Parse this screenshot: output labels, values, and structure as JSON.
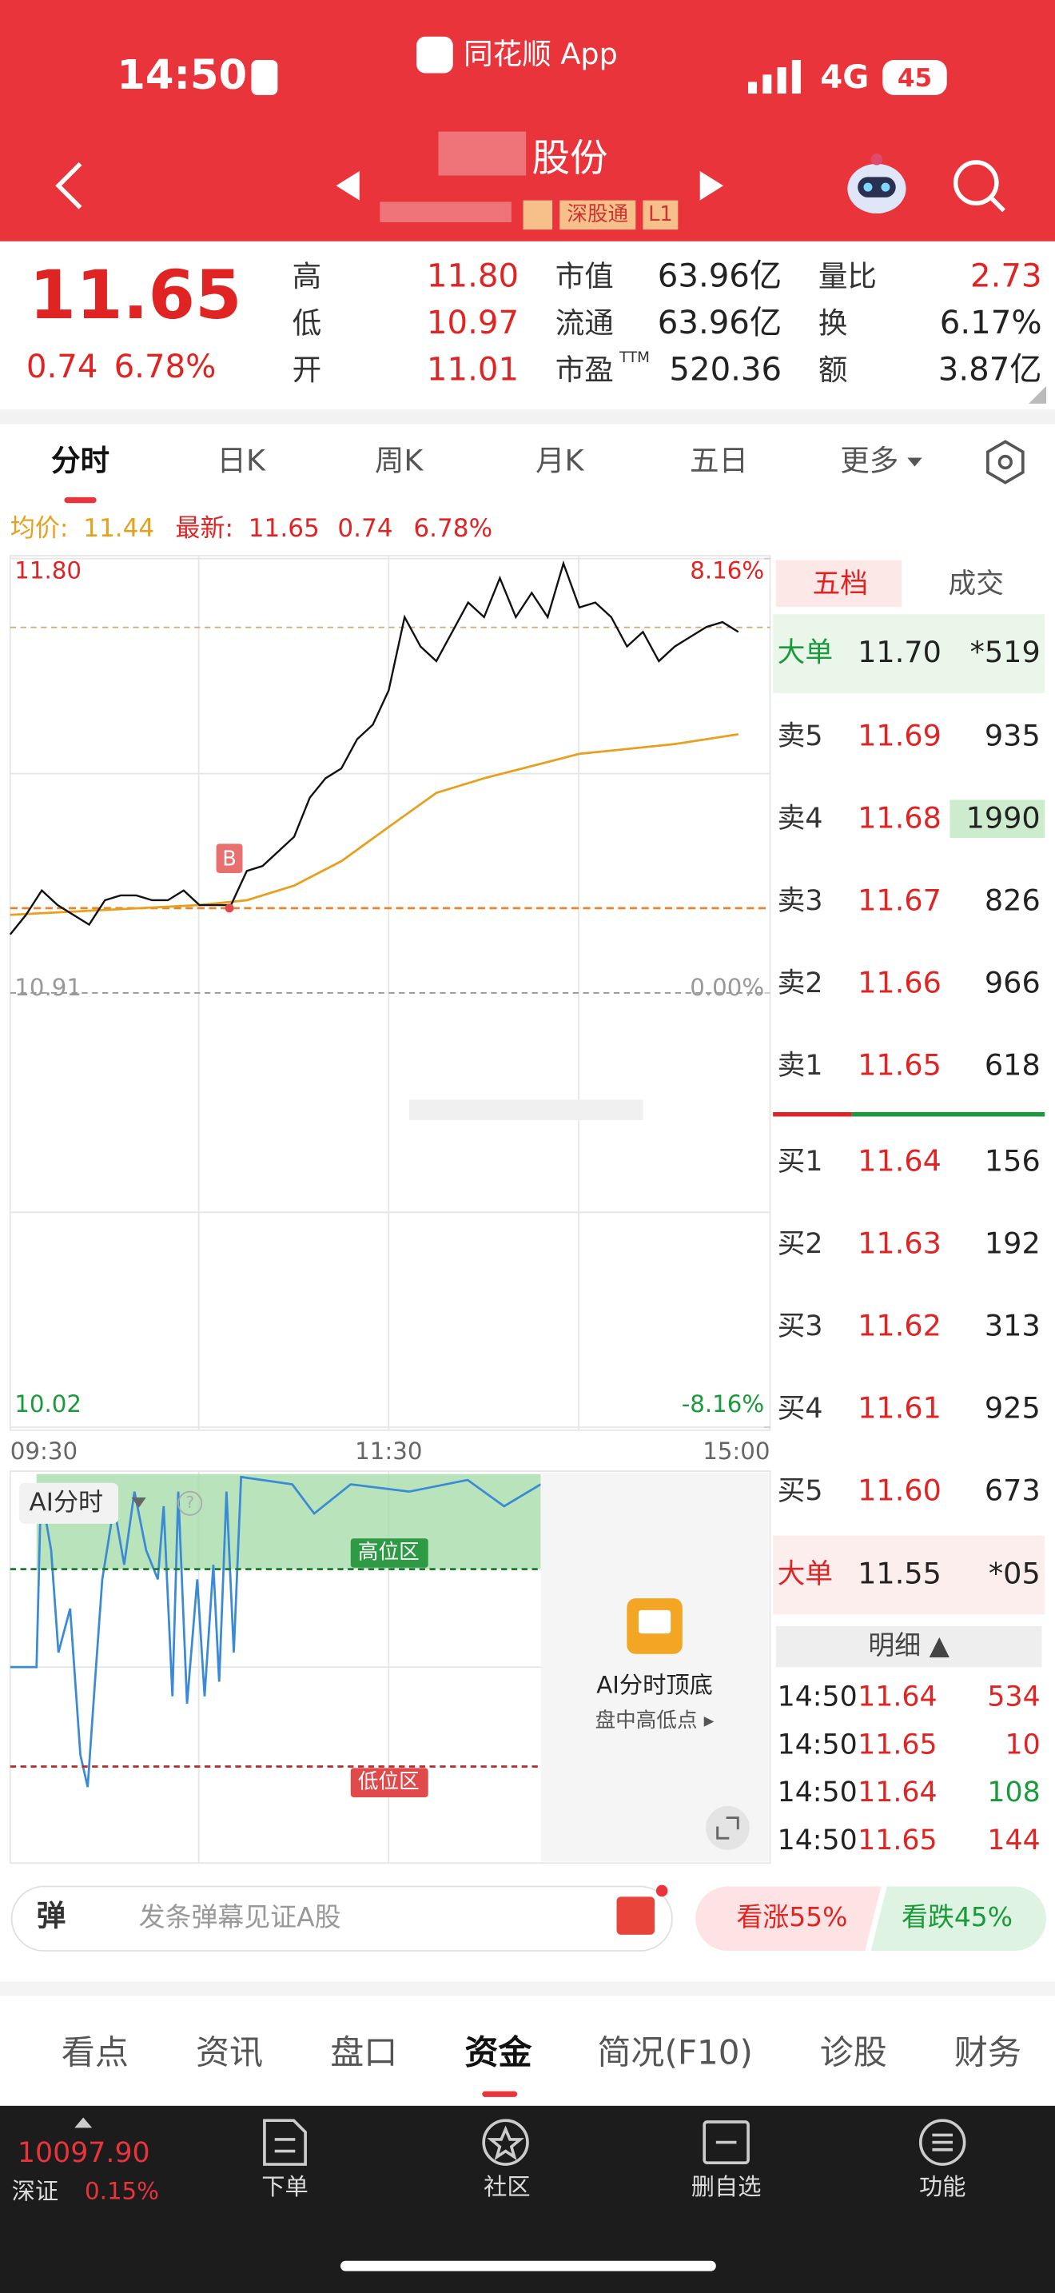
{
  "status": {
    "time": "14:50",
    "app": "同花顺 App",
    "network": "4G",
    "battery": "45"
  },
  "header": {
    "title": "股份",
    "tags": [
      "深股通",
      "L1"
    ]
  },
  "quote": {
    "price": "11.65",
    "change": "0.74",
    "change_pct": "6.78%",
    "stats": [
      {
        "label": "高",
        "value": "11.80"
      },
      {
        "label": "低",
        "value": "10.97"
      },
      {
        "label": "开",
        "value": "11.01"
      },
      {
        "label": "市值",
        "value": "63.96亿"
      },
      {
        "label": "流通",
        "value": "63.96亿"
      },
      {
        "label": "市盈",
        "sup": "TTM",
        "value": "520.36"
      },
      {
        "label": "量比",
        "value": "2.73"
      },
      {
        "label": "换",
        "value": "6.17%"
      },
      {
        "label": "额",
        "value": "3.87亿"
      }
    ]
  },
  "tabs": [
    "分时",
    "日K",
    "周K",
    "月K",
    "五日",
    "更多"
  ],
  "info": {
    "avg_label": "均价:",
    "avg": "11.44",
    "latest_label": "最新:",
    "latest": "11.65",
    "change": "0.74",
    "change_pct": "6.78%"
  },
  "intraday": {
    "type": "line",
    "yticks": [
      {
        "value": 11.8,
        "label": "11.80"
      },
      {
        "value": 10.91,
        "label": "10.91"
      },
      {
        "value": 10.02,
        "label": "10.02"
      }
    ],
    "y2ticks": [
      {
        "value": 8.16,
        "label": "8.16%"
      },
      {
        "value": 0,
        "label": "0.00%"
      },
      {
        "value": -8.16,
        "label": "-8.16%"
      }
    ],
    "xticks": [
      "09:30",
      "11:30",
      "15:00"
    ],
    "marker": "B",
    "price": {
      "x": [
        "09:30",
        "09:35",
        "09:40",
        "09:45",
        "09:50",
        "09:55",
        "10:00",
        "10:05",
        "10:10",
        "10:15",
        "10:20",
        "10:25",
        "10:30",
        "10:35",
        "10:40",
        "10:45",
        "10:50",
        "10:55",
        "11:00",
        "11:05",
        "11:10",
        "11:15",
        "11:20",
        "11:25",
        "11:30",
        "13:05",
        "13:10",
        "13:15",
        "13:20",
        "13:25",
        "13:30",
        "13:35",
        "13:40",
        "13:45",
        "13:50",
        "13:55",
        "14:00",
        "14:05",
        "14:10",
        "14:15",
        "14:20",
        "14:25",
        "14:30",
        "14:35",
        "14:40",
        "14:45",
        "14:50"
      ],
      "values": [
        11.03,
        11.07,
        11.12,
        11.09,
        11.07,
        11.05,
        11.1,
        11.11,
        11.11,
        11.1,
        11.1,
        11.12,
        11.09,
        11.09,
        11.09,
        11.16,
        11.17,
        11.2,
        11.23,
        11.31,
        11.35,
        11.37,
        11.43,
        11.46,
        11.53,
        11.68,
        11.62,
        11.59,
        11.65,
        11.71,
        11.68,
        11.76,
        11.68,
        11.73,
        11.68,
        11.79,
        11.7,
        11.71,
        11.68,
        11.62,
        11.65,
        11.59,
        11.62,
        11.64,
        11.66,
        11.67,
        11.65
      ]
    },
    "avg": {
      "x": [
        "09:30",
        "10:30",
        "10:45",
        "11:00",
        "11:15",
        "11:30",
        "13:15",
        "13:30",
        "14:00",
        "14:30",
        "14:50"
      ],
      "values": [
        11.07,
        11.09,
        11.1,
        11.13,
        11.18,
        11.25,
        11.32,
        11.35,
        11.4,
        11.42,
        11.44
      ]
    }
  },
  "ai_panel": {
    "title": "AI分时",
    "help": "?",
    "high_zone": "高位区",
    "low_zone": "低位区",
    "promo_title": "AI分时顶底",
    "promo_sub": "盘中高低点 ▸"
  },
  "order_book": {
    "tabs": [
      "五档",
      "成交"
    ],
    "big_top": {
      "label": "大单",
      "price": "11.70",
      "volume": "*519"
    },
    "asks": [
      {
        "label": "卖5",
        "price": "11.69",
        "volume": "935"
      },
      {
        "label": "卖4",
        "price": "11.68",
        "volume": "1990"
      },
      {
        "label": "卖3",
        "price": "11.67",
        "volume": "826"
      },
      {
        "label": "卖2",
        "price": "11.66",
        "volume": "966"
      },
      {
        "label": "卖1",
        "price": "11.65",
        "volume": "618"
      }
    ],
    "bids": [
      {
        "label": "买1",
        "price": "11.64",
        "volume": "156"
      },
      {
        "label": "买2",
        "price": "11.63",
        "volume": "192"
      },
      {
        "label": "买3",
        "price": "11.62",
        "volume": "313"
      },
      {
        "label": "买4",
        "price": "11.61",
        "volume": "925"
      },
      {
        "label": "买5",
        "price": "11.60",
        "volume": "673"
      }
    ],
    "big_bottom": {
      "label": "大单",
      "price": "11.55",
      "volume": "*05"
    },
    "detail_title": "明细 ▲",
    "trades": [
      [
        "14:50",
        "11.64",
        "534"
      ],
      [
        "14:50",
        "11.65",
        "10"
      ],
      [
        "14:50",
        "11.64",
        "108"
      ],
      [
        "14:50",
        "11.65",
        "144"
      ]
    ]
  },
  "comment_bar": {
    "badge": "弹",
    "placeholder": "发条弹幕见证A股",
    "up": "看涨55%",
    "down": "看跌45%"
  },
  "section_tabs": [
    "看点",
    "资讯",
    "盘口",
    "资金",
    "简况(F10)",
    "诊股",
    "财务"
  ],
  "bottom_nav": {
    "index_value": "10097.90",
    "index_name": "深证",
    "index_change": "0.15%",
    "items": [
      "下单",
      "社区",
      "删自选",
      "功能"
    ]
  }
}
